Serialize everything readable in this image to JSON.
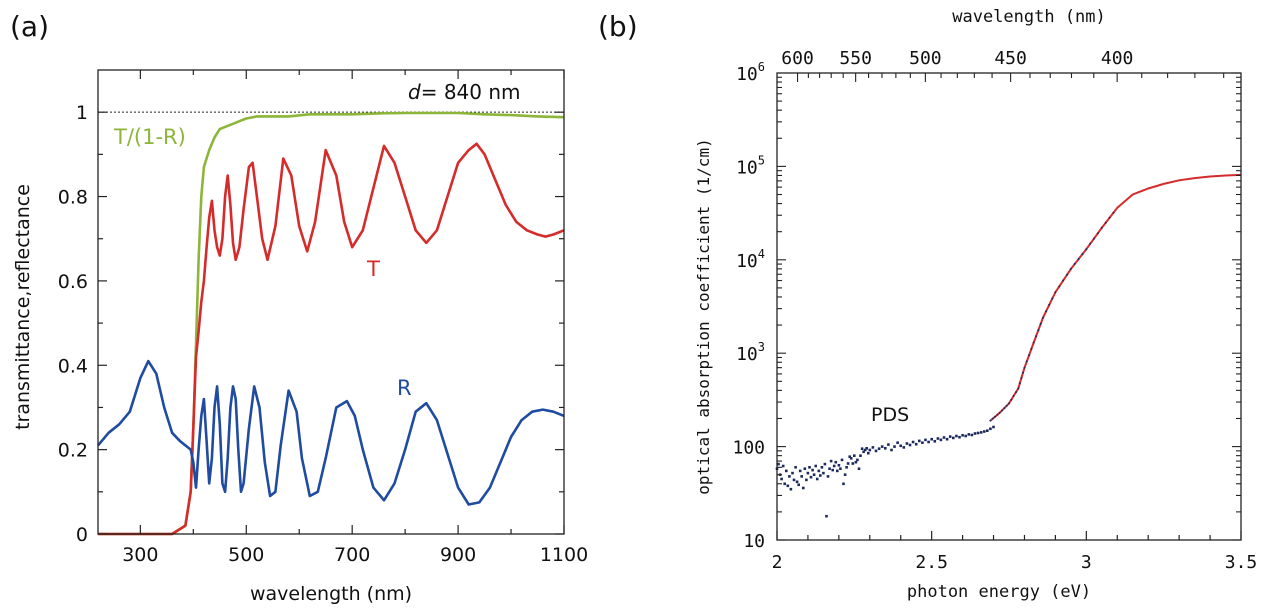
{
  "chart_data": [
    {
      "type": "line",
      "panel_label": "(a)",
      "xlabel": "wavelength (nm)",
      "ylabel": "transmittance,reflectance",
      "xlim": [
        220,
        1100
      ],
      "ylim": [
        0,
        1.1
      ],
      "xticks": [
        "300",
        "500",
        "700",
        "900",
        "1100"
      ],
      "yticks": [
        "0",
        "0.2",
        "0.4",
        "0.6",
        "0.8",
        "1"
      ],
      "annotation": {
        "italic": "d",
        "text": "= 840 nm"
      },
      "reference_line": 1.0,
      "series": [
        {
          "name": "T/(1-R)",
          "color": "#8db53a",
          "x": [
            220,
            360,
            385,
            395,
            400,
            405,
            410,
            415,
            420,
            430,
            440,
            450,
            460,
            470,
            480,
            490,
            500,
            520,
            550,
            580,
            620,
            660,
            700,
            750,
            800,
            850,
            900,
            950,
            1000,
            1050,
            1100
          ],
          "y": [
            0,
            0.0,
            0.02,
            0.1,
            0.25,
            0.45,
            0.65,
            0.8,
            0.87,
            0.91,
            0.94,
            0.96,
            0.965,
            0.97,
            0.975,
            0.98,
            0.985,
            0.99,
            0.99,
            0.99,
            0.995,
            0.995,
            0.995,
            0.997,
            0.998,
            0.998,
            0.998,
            0.995,
            0.993,
            0.99,
            0.988
          ]
        },
        {
          "name": "T",
          "color": "#d52b2b",
          "x": [
            220,
            360,
            385,
            395,
            400,
            405,
            410,
            415,
            420,
            425,
            430,
            435,
            440,
            445,
            450,
            455,
            460,
            465,
            470,
            475,
            480,
            487,
            495,
            505,
            512,
            520,
            530,
            540,
            555,
            570,
            585,
            600,
            615,
            630,
            650,
            670,
            685,
            700,
            720,
            740,
            760,
            780,
            800,
            820,
            840,
            860,
            880,
            900,
            920,
            935,
            950,
            970,
            990,
            1010,
            1030,
            1050,
            1065,
            1080,
            1100
          ],
          "y": [
            0,
            0.0,
            0.02,
            0.1,
            0.25,
            0.42,
            0.48,
            0.55,
            0.6,
            0.68,
            0.75,
            0.79,
            0.72,
            0.68,
            0.66,
            0.7,
            0.8,
            0.85,
            0.78,
            0.69,
            0.65,
            0.68,
            0.77,
            0.87,
            0.88,
            0.8,
            0.7,
            0.65,
            0.73,
            0.89,
            0.85,
            0.73,
            0.67,
            0.74,
            0.91,
            0.85,
            0.74,
            0.68,
            0.72,
            0.82,
            0.92,
            0.88,
            0.8,
            0.72,
            0.69,
            0.72,
            0.8,
            0.88,
            0.91,
            0.925,
            0.9,
            0.84,
            0.78,
            0.74,
            0.72,
            0.71,
            0.705,
            0.71,
            0.72
          ]
        },
        {
          "name": "R",
          "color": "#1f4ba0",
          "x": [
            220,
            240,
            260,
            280,
            300,
            315,
            330,
            345,
            360,
            375,
            385,
            395,
            400,
            405,
            410,
            415,
            420,
            425,
            430,
            435,
            440,
            445,
            450,
            455,
            460,
            465,
            470,
            475,
            480,
            485,
            490,
            495,
            505,
            515,
            525,
            535,
            545,
            555,
            565,
            580,
            595,
            605,
            620,
            635,
            650,
            670,
            690,
            705,
            720,
            740,
            760,
            780,
            800,
            820,
            840,
            860,
            880,
            900,
            920,
            940,
            960,
            980,
            1000,
            1020,
            1040,
            1060,
            1080,
            1100
          ],
          "y": [
            0.21,
            0.24,
            0.26,
            0.29,
            0.37,
            0.41,
            0.38,
            0.3,
            0.24,
            0.22,
            0.21,
            0.2,
            0.17,
            0.11,
            0.2,
            0.28,
            0.32,
            0.22,
            0.12,
            0.18,
            0.3,
            0.35,
            0.26,
            0.12,
            0.1,
            0.18,
            0.3,
            0.35,
            0.32,
            0.2,
            0.1,
            0.12,
            0.25,
            0.35,
            0.3,
            0.17,
            0.09,
            0.1,
            0.21,
            0.34,
            0.29,
            0.18,
            0.09,
            0.1,
            0.18,
            0.3,
            0.315,
            0.28,
            0.2,
            0.11,
            0.08,
            0.12,
            0.2,
            0.29,
            0.31,
            0.27,
            0.19,
            0.11,
            0.07,
            0.075,
            0.11,
            0.17,
            0.23,
            0.27,
            0.29,
            0.295,
            0.29,
            0.28
          ]
        }
      ],
      "labels": [
        {
          "text": "T/(1-R)",
          "color": "#8db53a"
        },
        {
          "text": "T",
          "color": "#d52b2b"
        },
        {
          "text": "R",
          "color": "#1f4ba0"
        }
      ]
    },
    {
      "type": "scatter",
      "panel_label": "(b)",
      "xlabel": "photon energy (eV)",
      "ylabel": "optical absorption coefficient (1/cm)",
      "top_axis_label": "wavelength (nm)",
      "xlim": [
        2.0,
        3.5
      ],
      "ylim": [
        10,
        1000000
      ],
      "yscale": "log",
      "xticks": [
        "2",
        "2.5",
        "3",
        "3.5"
      ],
      "yticks": [
        {
          "value": 10,
          "text": "10"
        },
        {
          "value": 100,
          "text": "100"
        },
        {
          "value": 1000,
          "base": "10",
          "exp": "3"
        },
        {
          "value": 10000,
          "base": "10",
          "exp": "4"
        },
        {
          "value": 100000,
          "base": "10",
          "exp": "5"
        },
        {
          "value": 1000000,
          "base": "10",
          "exp": "6"
        }
      ],
      "top_ticks": [
        "600",
        "550",
        "500",
        "450",
        "400"
      ],
      "annotation": "PDS",
      "series": [
        {
          "name": "PDS",
          "color": "#1c2a5e",
          "x": [
            2.0,
            2.005,
            2.01,
            2.015,
            2.02,
            2.025,
            2.03,
            2.035,
            2.04,
            2.045,
            2.05,
            2.055,
            2.06,
            2.065,
            2.07,
            2.075,
            2.08,
            2.085,
            2.09,
            2.095,
            2.1,
            2.105,
            2.11,
            2.115,
            2.12,
            2.125,
            2.13,
            2.135,
            2.14,
            2.145,
            2.15,
            2.155,
            2.16,
            2.165,
            2.17,
            2.175,
            2.18,
            2.185,
            2.19,
            2.195,
            2.2,
            2.205,
            2.21,
            2.215,
            2.22,
            2.225,
            2.23,
            2.235,
            2.24,
            2.245,
            2.25,
            2.255,
            2.26,
            2.265,
            2.27,
            2.275,
            2.28,
            2.285,
            2.29,
            2.295,
            2.3,
            2.31,
            2.32,
            2.33,
            2.34,
            2.35,
            2.36,
            2.37,
            2.38,
            2.39,
            2.4,
            2.41,
            2.42,
            2.43,
            2.44,
            2.45,
            2.46,
            2.47,
            2.48,
            2.49,
            2.5,
            2.51,
            2.52,
            2.53,
            2.54,
            2.55,
            2.56,
            2.57,
            2.58,
            2.59,
            2.6,
            2.61,
            2.62,
            2.63,
            2.64,
            2.65,
            2.66,
            2.67,
            2.68,
            2.69,
            2.7
          ],
          "y": [
            58,
            65,
            50,
            45,
            62,
            40,
            55,
            38,
            48,
            35,
            52,
            44,
            60,
            42,
            39,
            55,
            48,
            36,
            58,
            44,
            52,
            60,
            47,
            56,
            50,
            62,
            45,
            55,
            49,
            60,
            52,
            65,
            18,
            48,
            58,
            70,
            56,
            62,
            68,
            55,
            63,
            58,
            72,
            40,
            50,
            60,
            66,
            78,
            75,
            66,
            80,
            68,
            72,
            58,
            80,
            95,
            88,
            92,
            96,
            85,
            92,
            98,
            90,
            95,
            100,
            96,
            105,
            92,
            100,
            110,
            102,
            98,
            108,
            104,
            112,
            106,
            115,
            110,
            118,
            112,
            120,
            114,
            122,
            118,
            125,
            120,
            128,
            124,
            130,
            126,
            132,
            130,
            135,
            133,
            138,
            140,
            142,
            145,
            148,
            155,
            162
          ]
        },
        {
          "name": "",
          "color": "#d52b2b",
          "x": [
            2.69,
            2.72,
            2.75,
            2.78,
            2.8,
            2.83,
            2.86,
            2.9,
            2.95,
            3.0,
            3.05,
            3.1,
            3.15,
            3.2,
            3.25,
            3.3,
            3.35,
            3.4,
            3.45,
            3.5
          ],
          "y": [
            190,
            230,
            290,
            420,
            700,
            1300,
            2400,
            4500,
            8000,
            13000,
            22000,
            36000,
            50000,
            58000,
            65000,
            71000,
            75000,
            78000,
            80000,
            81000
          ]
        }
      ]
    }
  ]
}
